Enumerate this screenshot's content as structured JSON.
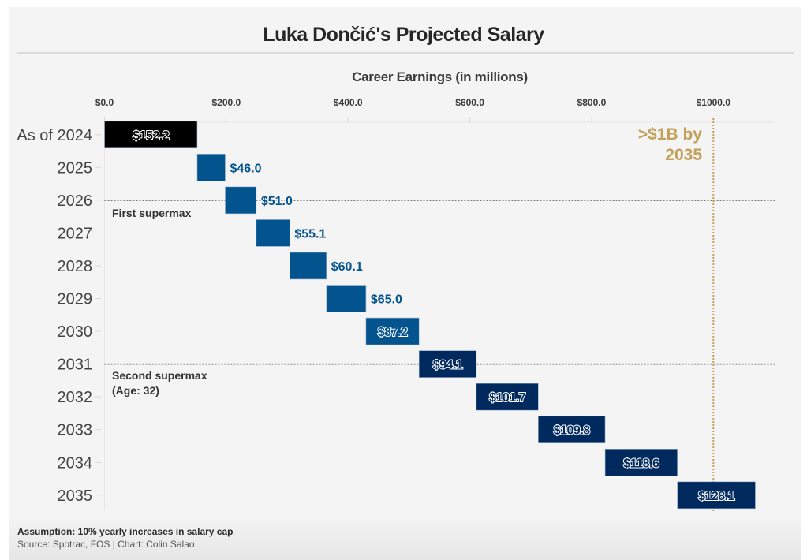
{
  "chart_data": {
    "type": "bar",
    "subtype": "waterfall-horizontal",
    "title": "Luka Dončić's Projected Salary",
    "xlabel": "Career Earnings (in millions)",
    "ylabel": "",
    "xlim": [
      0,
      1100
    ],
    "x_ticks": [
      0,
      200,
      400,
      600,
      800,
      1000
    ],
    "x_tick_labels": [
      "$0.0",
      "$200.0",
      "$400.0",
      "$600.0",
      "$800.0",
      "$1000.0"
    ],
    "categories": [
      "As of 2024",
      "2025",
      "2026",
      "2027",
      "2028",
      "2029",
      "2030",
      "2031",
      "2032",
      "2033",
      "2034",
      "2035"
    ],
    "values": [
      152.2,
      46.0,
      51.0,
      55.1,
      60.1,
      65.0,
      87.2,
      94.1,
      101.7,
      109.8,
      118.6,
      128.1
    ],
    "labels": [
      "$152.2",
      "$46.0",
      "$51.0",
      "$55.1",
      "$60.1",
      "$65.0",
      "$87.2",
      "$94.1",
      "$101.7",
      "$109.8",
      "$118.6",
      "$128.1"
    ],
    "bar_groups": [
      "past",
      "first",
      "first",
      "first",
      "first",
      "first",
      "first",
      "second",
      "second",
      "second",
      "second",
      "second"
    ],
    "colors": {
      "past": "#000000",
      "first": "#03538f",
      "second": "#002a5e",
      "threshold": "#c4a15a",
      "label_outside": "#03538f"
    },
    "reference_lines": [
      {
        "type": "horizontal",
        "category": "2026",
        "label": "First supermax",
        "style": "dotted"
      },
      {
        "type": "horizontal",
        "category": "2031",
        "label": "Second supermax\n(Age: 32)",
        "style": "dotted"
      },
      {
        "type": "vertical",
        "x": 1000,
        "label": ">$1B by 2035",
        "style": "dotted"
      }
    ],
    "grid": true
  },
  "annotations": {
    "threshold_line1": ">$1B by",
    "threshold_line2": "2035",
    "first_supermax": "First supermax",
    "second_supermax_line1": "Second supermax",
    "second_supermax_line2": "(Age: 32)"
  },
  "footer": {
    "assumption": "Assumption: 10% yearly increases in salary cap",
    "source": "Source: Spotrac, FOS | Chart: Colin Salao"
  }
}
